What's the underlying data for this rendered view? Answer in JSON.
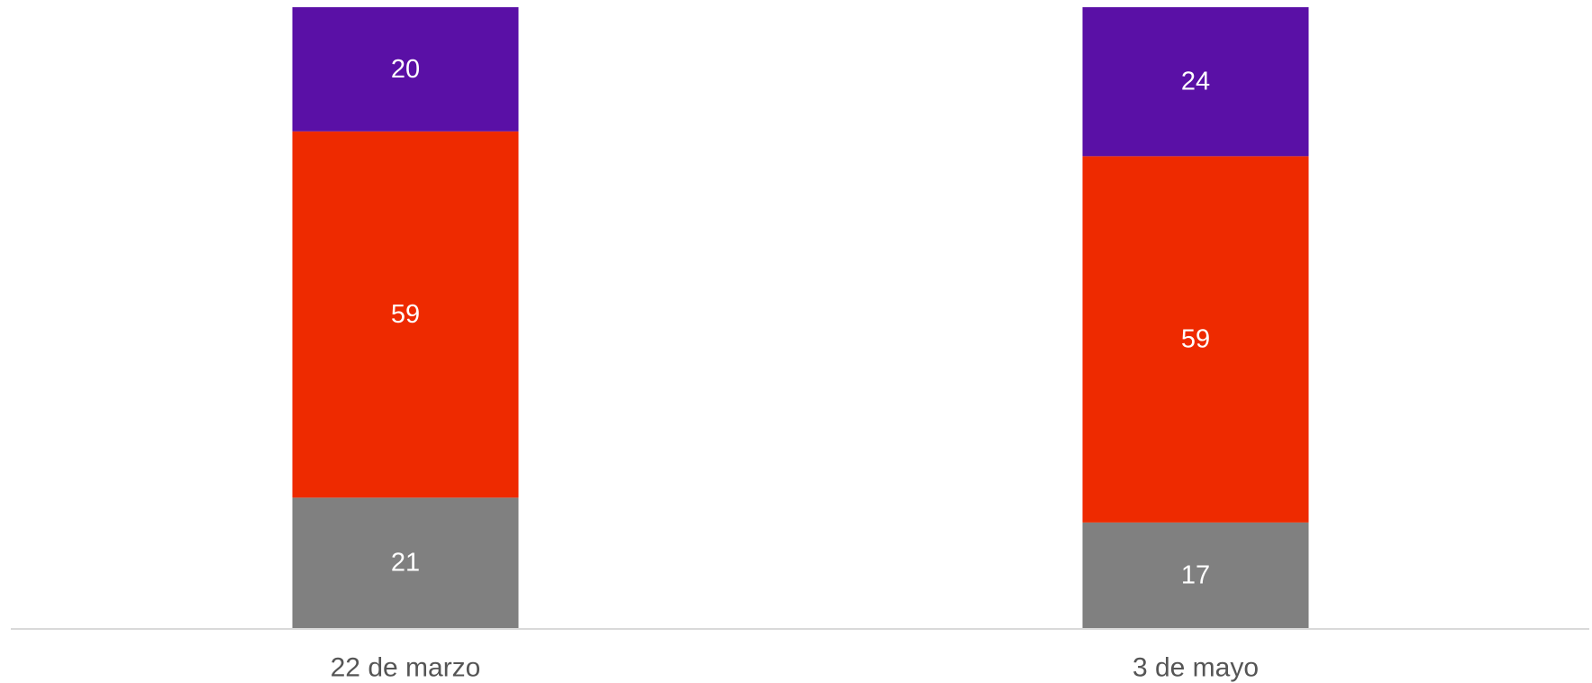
{
  "chart_data": {
    "type": "bar",
    "stacked": true,
    "categories": [
      "22 de marzo",
      "3 de mayo"
    ],
    "series": [
      {
        "values": [
          21,
          17
        ],
        "color": "#808080"
      },
      {
        "values": [
          59,
          59
        ],
        "color": "#EE2A00"
      },
      {
        "values": [
          20,
          24
        ],
        "color": "#5A10A6"
      }
    ],
    "data_labels": true,
    "ylim": [
      0,
      100
    ],
    "grid": false,
    "legend": "none",
    "title": "",
    "xlabel": "",
    "ylabel": "",
    "baseline_color": "#D9D9D9",
    "label_color": "#FFFFFF",
    "tick_label_color": "#555555"
  }
}
